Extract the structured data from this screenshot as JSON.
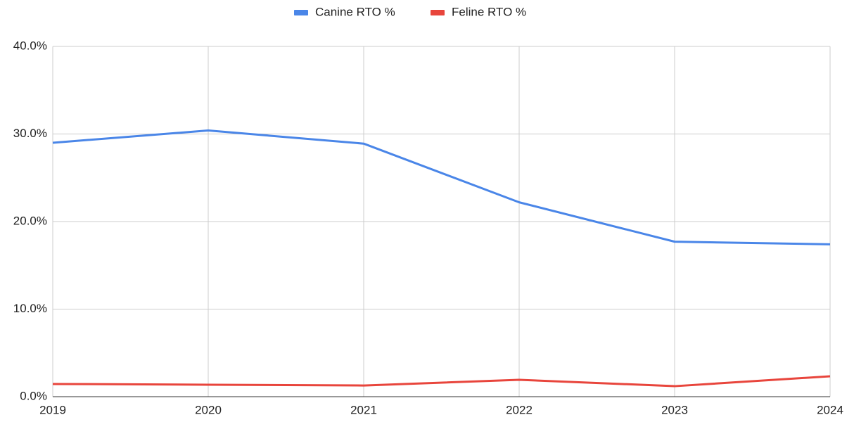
{
  "chart_data": {
    "type": "line",
    "x": [
      2019,
      2020,
      2021,
      2022,
      2023,
      2024
    ],
    "xlim": [
      2019,
      2024
    ],
    "xticks": [
      2019,
      2020,
      2021,
      2022,
      2023,
      2024
    ],
    "ylim": [
      0,
      40
    ],
    "yticks": [
      {
        "value": 0,
        "label": "0.0%"
      },
      {
        "value": 10,
        "label": "10.0%"
      },
      {
        "value": 20,
        "label": "20.0%"
      },
      {
        "value": 30,
        "label": "30.0%"
      },
      {
        "value": 40,
        "label": "40.0%"
      }
    ],
    "grid": true,
    "legend": "top",
    "series": [
      {
        "name": "Canine RTO %",
        "color": "#4a86e8",
        "values": [
          29.0,
          30.4,
          28.9,
          22.2,
          17.7,
          17.4
        ]
      },
      {
        "name": "Feline RTO %",
        "color": "#e8453c",
        "values": [
          1.45,
          1.37,
          1.28,
          1.93,
          1.2,
          2.33
        ]
      }
    ]
  }
}
